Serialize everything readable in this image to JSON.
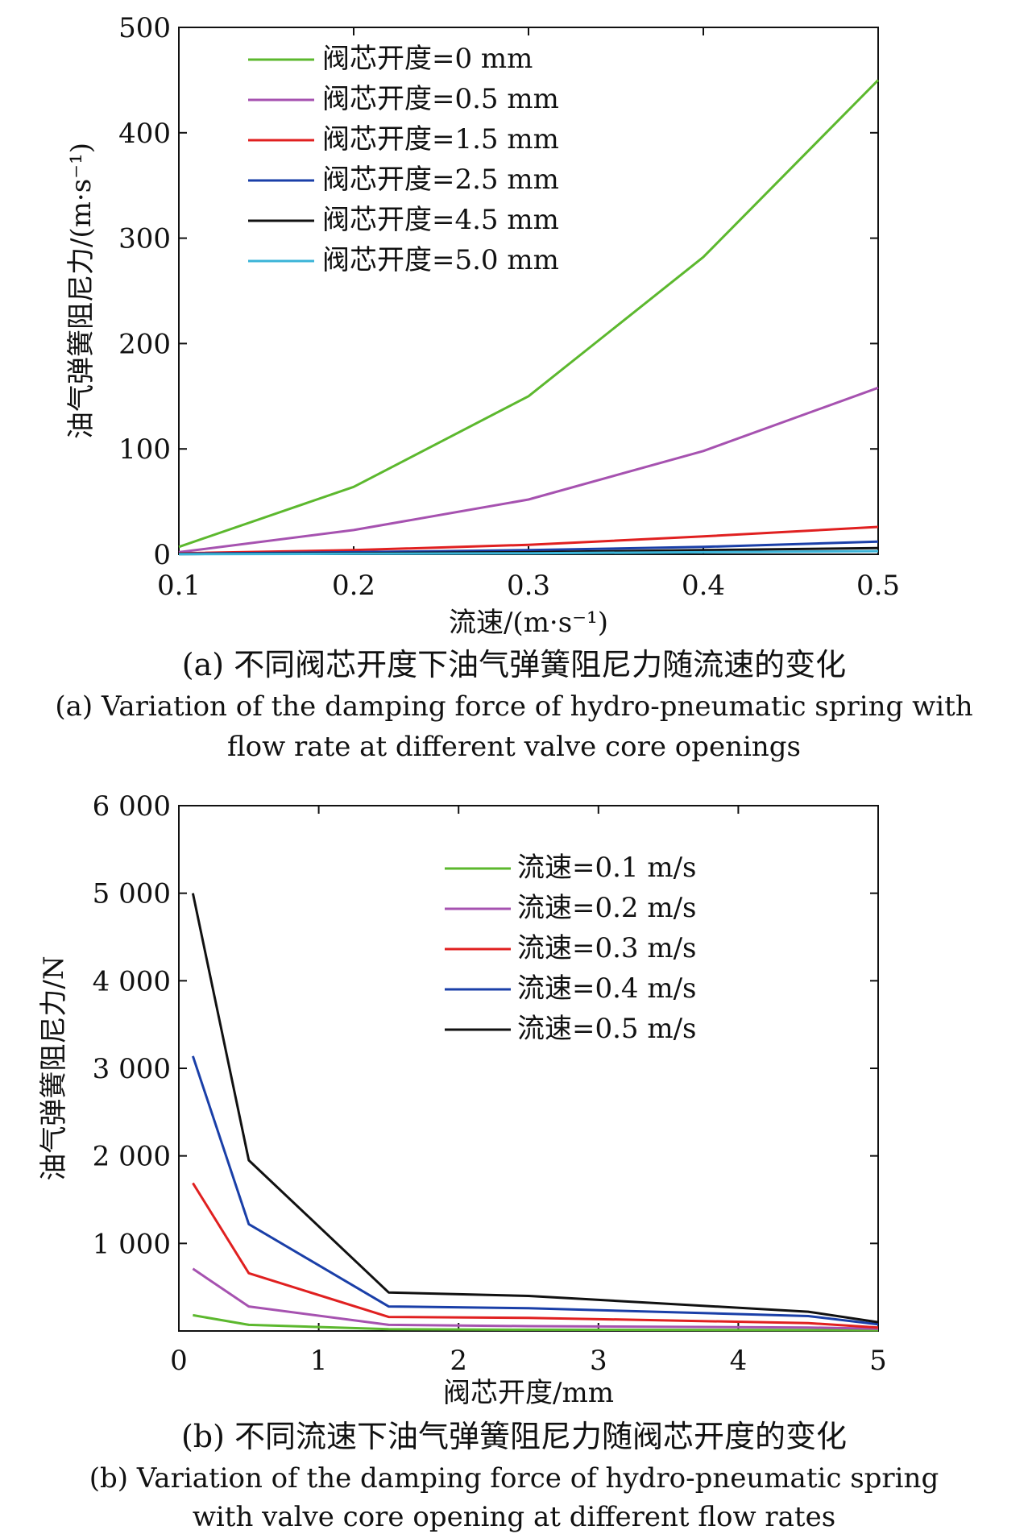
{
  "chart_data": [
    {
      "type": "line",
      "xlabel": "流速/(m·s⁻¹)",
      "ylabel": "油气弹簧阻尼力/(m·s⁻¹)",
      "xlim": [
        0.1,
        0.5
      ],
      "ylim": [
        0,
        500
      ],
      "xticks": [
        "0.1",
        "0.2",
        "0.3",
        "0.4",
        "0.5"
      ],
      "yticks": [
        "0",
        "100",
        "200",
        "300",
        "400",
        "500"
      ],
      "grid": false,
      "legend_position": "top-left",
      "x": [
        0.1,
        0.2,
        0.3,
        0.4,
        0.5
      ],
      "series": [
        {
          "name": "阀芯开度=0 mm",
          "color": "#5cb82e",
          "values": [
            7,
            64,
            150,
            282,
            450
          ]
        },
        {
          "name": "阀芯开度=0.5 mm",
          "color": "#a652b0",
          "values": [
            2,
            23,
            52,
            98,
            158
          ]
        },
        {
          "name": "阀芯开度=1.5 mm",
          "color": "#e02020",
          "values": [
            1,
            4,
            9,
            17,
            26
          ]
        },
        {
          "name": "阀芯开度=2.5 mm",
          "color": "#1a3fa8",
          "values": [
            0.5,
            2,
            4,
            7,
            12
          ]
        },
        {
          "name": "阀芯开度=4.5 mm",
          "color": "#111111",
          "values": [
            0.2,
            1,
            2,
            4,
            6
          ]
        },
        {
          "name": "阀芯开度=5.0 mm",
          "color": "#3bb4d8",
          "values": [
            0.1,
            0.5,
            1,
            2,
            3
          ]
        }
      ],
      "caption_zh": "(a) 不同阀芯开度下油气弹簧阻尼力随流速的变化",
      "caption_en": [
        "(a) Variation of the damping force of hydro-pneumatic spring with",
        "flow rate at different valve core openings"
      ]
    },
    {
      "type": "line",
      "xlabel": "阀芯开度/mm",
      "ylabel": "油气弹簧阻尼力/N",
      "xlim": [
        0,
        5
      ],
      "ylim": [
        0,
        6000
      ],
      "xticks": [
        "0",
        "1",
        "2",
        "3",
        "4",
        "5"
      ],
      "yticks": [
        "",
        "1 000",
        "2 000",
        "3 000",
        "4 000",
        "5 000",
        "6 000"
      ],
      "grid": false,
      "legend_position": "top-right",
      "x": [
        0.1,
        0.5,
        1.5,
        2.5,
        4.5,
        5.0
      ],
      "series": [
        {
          "name": "流速=0.1 m/s",
          "color": "#5cb82e",
          "values": [
            180,
            70,
            20,
            15,
            10,
            8
          ]
        },
        {
          "name": "流速=0.2 m/s",
          "color": "#a652b0",
          "values": [
            710,
            280,
            70,
            55,
            40,
            25
          ]
        },
        {
          "name": "流速=0.3 m/s",
          "color": "#e02020",
          "values": [
            1690,
            660,
            160,
            150,
            90,
            40
          ]
        },
        {
          "name": "流速=0.4 m/s",
          "color": "#1a3fa8",
          "values": [
            3140,
            1220,
            280,
            260,
            170,
            75
          ]
        },
        {
          "name": "流速=0.5 m/s",
          "color": "#111111",
          "values": [
            5000,
            1950,
            440,
            400,
            220,
            100
          ]
        }
      ],
      "caption_zh": "(b) 不同流速下油气弹簧阻尼力随阀芯开度的变化",
      "caption_en": [
        "(b) Variation of the damping force of hydro-pneumatic spring",
        "with valve core opening at different flow rates"
      ]
    }
  ]
}
